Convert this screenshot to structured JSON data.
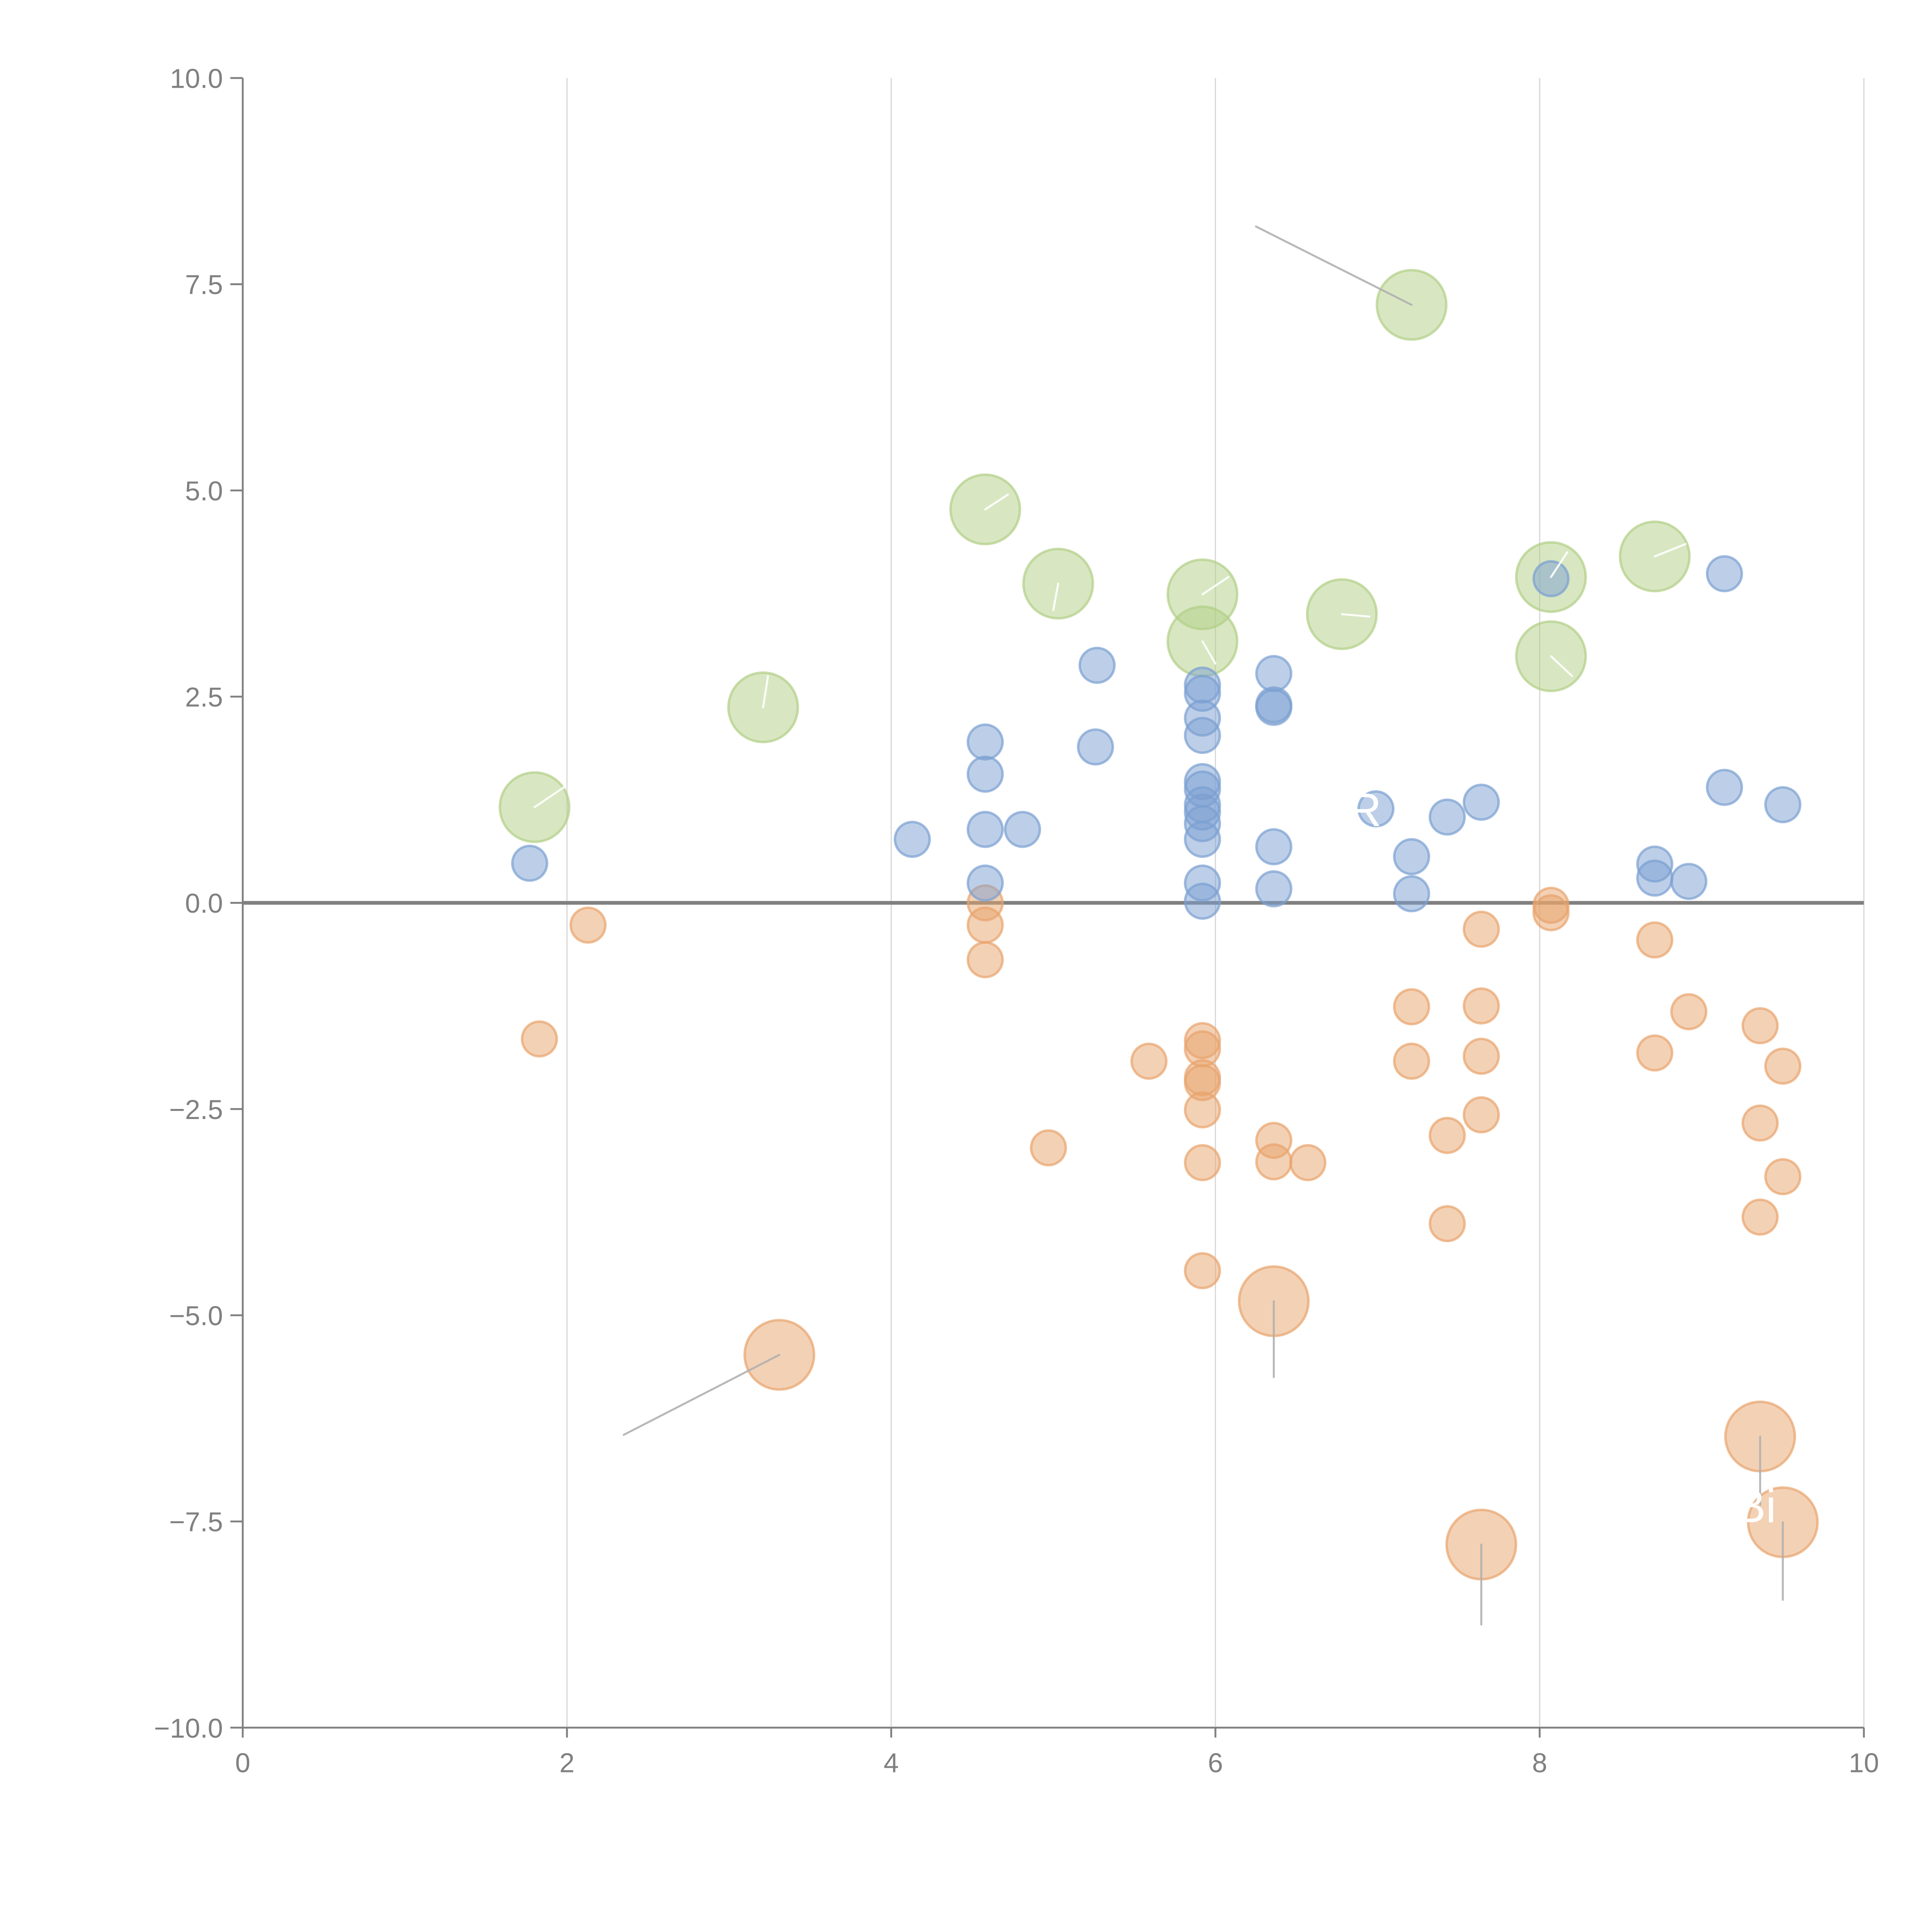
{
  "chart_data": {
    "type": "scatter",
    "title": "",
    "xlabel": "",
    "ylabel": "",
    "xlim": [
      0,
      10
    ],
    "ylim": [
      -10,
      10
    ],
    "x_ticks": [
      "0",
      "2",
      "4",
      "6",
      "8",
      "10"
    ],
    "x_tick_values": [
      0,
      2,
      4,
      6,
      8,
      10
    ],
    "y_ticks": [
      "10.0",
      "7.5",
      "5.0",
      "2.5",
      "0.0",
      "−2.5",
      "−5.0",
      "−7.5",
      "−10.0"
    ],
    "y_tick_values": [
      10,
      7.5,
      5,
      2.5,
      0,
      -2.5,
      -5,
      -7.5,
      -10
    ],
    "grid": "vertical",
    "reference_line_y": 0,
    "legend": "none",
    "series": [
      {
        "name": "blue",
        "color": "#7b9fd1",
        "size": "small",
        "points": [
          [
            1.77,
            0.48
          ],
          [
            4.13,
            0.77
          ],
          [
            4.58,
            1.95
          ],
          [
            4.58,
            1.56
          ],
          [
            4.58,
            0.89
          ],
          [
            4.58,
            0.24
          ],
          [
            4.81,
            0.89
          ],
          [
            5.27,
            2.88
          ],
          [
            5.26,
            1.89
          ],
          [
            5.92,
            2.64
          ],
          [
            5.92,
            2.54
          ],
          [
            5.92,
            2.24
          ],
          [
            5.92,
            2.03
          ],
          [
            5.92,
            1.47
          ],
          [
            5.92,
            1.38
          ],
          [
            5.92,
            1.19
          ],
          [
            5.92,
            1.1
          ],
          [
            5.92,
            0.96
          ],
          [
            5.92,
            0.77
          ],
          [
            5.92,
            0.24
          ],
          [
            5.92,
            0.02
          ],
          [
            6.36,
            2.78
          ],
          [
            6.36,
            2.4
          ],
          [
            6.36,
            2.37
          ],
          [
            6.36,
            0.68
          ],
          [
            6.36,
            0.17
          ],
          [
            6.99,
            1.14
          ],
          [
            7.21,
            0.56
          ],
          [
            7.21,
            0.11
          ],
          [
            7.43,
            1.04
          ],
          [
            7.64,
            1.22
          ],
          [
            8.07,
            3.93
          ],
          [
            8.71,
            0.47
          ],
          [
            8.71,
            0.3
          ],
          [
            8.92,
            0.26
          ],
          [
            9.14,
            3.99
          ],
          [
            9.14,
            1.4
          ],
          [
            9.5,
            1.19
          ]
        ]
      },
      {
        "name": "orange",
        "color": "#e8a46c",
        "size": "small",
        "points": [
          [
            2.13,
            -0.27
          ],
          [
            1.83,
            -1.65
          ],
          [
            4.58,
            0.0
          ],
          [
            4.58,
            -0.27
          ],
          [
            4.58,
            -0.69
          ],
          [
            4.97,
            -2.97
          ],
          [
            5.59,
            -1.92
          ],
          [
            5.92,
            -1.67
          ],
          [
            5.92,
            -1.77
          ],
          [
            5.92,
            -2.12
          ],
          [
            5.92,
            -2.18
          ],
          [
            5.92,
            -2.51
          ],
          [
            5.92,
            -3.15
          ],
          [
            5.92,
            -4.46
          ],
          [
            6.36,
            -2.88
          ],
          [
            6.36,
            -3.14
          ],
          [
            6.57,
            -3.15
          ],
          [
            7.21,
            -1.26
          ],
          [
            7.21,
            -1.92
          ],
          [
            7.43,
            -2.82
          ],
          [
            7.43,
            -3.89
          ],
          [
            7.64,
            -0.32
          ],
          [
            7.64,
            -1.25
          ],
          [
            7.64,
            -1.86
          ],
          [
            7.64,
            -2.57
          ],
          [
            8.07,
            -0.03
          ],
          [
            8.07,
            -0.12
          ],
          [
            8.71,
            -0.45
          ],
          [
            8.92,
            -1.32
          ],
          [
            8.71,
            -1.82
          ],
          [
            9.36,
            -1.49
          ],
          [
            9.5,
            -1.98
          ],
          [
            9.36,
            -2.67
          ],
          [
            9.5,
            -3.32
          ],
          [
            9.36,
            -3.81
          ]
        ]
      },
      {
        "name": "orange-highlight",
        "color": "#e8a46c",
        "size": "large",
        "points": [
          [
            3.31,
            -5.48
          ],
          [
            6.36,
            -4.83
          ],
          [
            7.64,
            -7.78
          ],
          [
            9.36,
            -6.47
          ],
          [
            9.5,
            -7.51
          ]
        ]
      },
      {
        "name": "green-highlight",
        "color": "#b2cf86",
        "size": "large",
        "points": [
          [
            7.21,
            7.25
          ],
          [
            4.58,
            4.77
          ],
          [
            5.03,
            3.87
          ],
          [
            5.92,
            3.74
          ],
          [
            5.92,
            3.17
          ],
          [
            6.78,
            3.5
          ],
          [
            8.07,
            3.95
          ],
          [
            8.07,
            2.99
          ],
          [
            8.71,
            4.2
          ],
          [
            3.21,
            2.37
          ],
          [
            1.8,
            1.16
          ]
        ]
      }
    ],
    "annotations": [
      {
        "text": "R",
        "x": 6.92,
        "y": 1.14,
        "color": "#ffffff"
      },
      {
        "text": "Bi",
        "x": 9.33,
        "y": -7.3,
        "color": "#ffffff"
      }
    ],
    "leader_lines": [
      {
        "from": [
          7.21,
          7.25
        ],
        "to": [
          6.25,
          8.2
        ],
        "color": "#b0b0b0"
      },
      {
        "from": [
          3.31,
          -5.48
        ],
        "to": [
          2.35,
          -6.45
        ],
        "color": "#b0b0b0"
      },
      {
        "from": [
          6.36,
          -4.83
        ],
        "to": [
          6.36,
          -5.75
        ],
        "color": "#b0b0b0"
      },
      {
        "from": [
          7.64,
          -7.78
        ],
        "to": [
          7.64,
          -8.75
        ],
        "color": "#b0b0b0"
      },
      {
        "from": [
          9.36,
          -6.47
        ],
        "to": [
          9.36,
          -7.3
        ],
        "color": "#b0b0b0"
      },
      {
        "from": [
          9.5,
          -7.51
        ],
        "to": [
          9.5,
          -8.45
        ],
        "color": "#b0b0b0"
      },
      {
        "from": [
          4.58,
          4.77
        ],
        "to": [
          4.72,
          4.95
        ],
        "color": "#ffffff"
      },
      {
        "from": [
          5.03,
          3.87
        ],
        "to": [
          5.0,
          3.55
        ],
        "color": "#ffffff"
      },
      {
        "from": [
          5.92,
          3.74
        ],
        "to": [
          6.08,
          3.95
        ],
        "color": "#ffffff"
      },
      {
        "from": [
          5.92,
          3.17
        ],
        "to": [
          6.0,
          2.9
        ],
        "color": "#ffffff"
      },
      {
        "from": [
          6.78,
          3.5
        ],
        "to": [
          6.95,
          3.47
        ],
        "color": "#ffffff"
      },
      {
        "from": [
          8.07,
          3.95
        ],
        "to": [
          8.17,
          4.25
        ],
        "color": "#ffffff"
      },
      {
        "from": [
          8.07,
          2.99
        ],
        "to": [
          8.2,
          2.75
        ],
        "color": "#ffffff"
      },
      {
        "from": [
          8.71,
          4.2
        ],
        "to": [
          8.9,
          4.35
        ],
        "color": "#ffffff"
      },
      {
        "from": [
          3.21,
          2.37
        ],
        "to": [
          3.24,
          2.75
        ],
        "color": "#ffffff"
      },
      {
        "from": [
          1.8,
          1.16
        ],
        "to": [
          1.98,
          1.4
        ],
        "color": "#ffffff"
      }
    ]
  }
}
